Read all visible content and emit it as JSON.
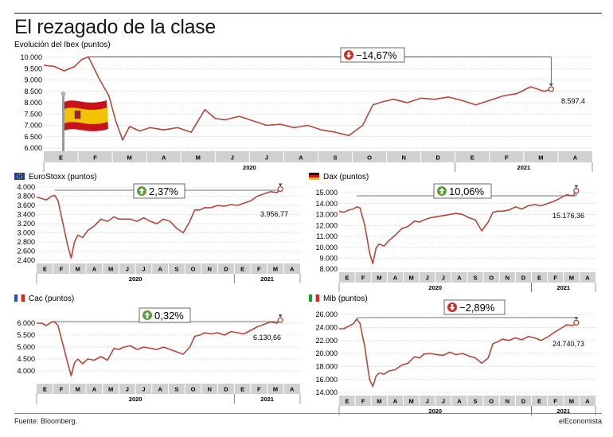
{
  "title": "El rezagado de la clase",
  "source": "Fuente: Bloomberg.",
  "brand": "elEconomista",
  "colors": {
    "line": "#b8463a",
    "badge_up": "#5b9c3a",
    "badge_down": "#d42a1e",
    "axis_band": "#d0d0d0"
  },
  "chart_data": [
    {
      "id": "ibex",
      "type": "line",
      "title": "Evolución del Ibex (puntos)",
      "flag": "spain-flag-icon",
      "ylim": [
        6000,
        10000
      ],
      "yticks": [
        "10.000",
        "9.500",
        "9.000",
        "8.500",
        "8.000",
        "7.500",
        "7.000",
        "6.500",
        "6.000"
      ],
      "ytick_values": [
        10000,
        9500,
        9000,
        8500,
        8000,
        7500,
        7000,
        6500,
        6000
      ],
      "months": [
        "E",
        "F",
        "M",
        "A",
        "M",
        "J",
        "J",
        "A",
        "S",
        "O",
        "N",
        "D",
        "E",
        "F",
        "M",
        "A"
      ],
      "years": [
        {
          "label": "2020",
          "from": 0,
          "to": 12
        },
        {
          "label": "2021",
          "from": 12,
          "to": 16
        }
      ],
      "change": "−14,67%",
      "direction": "down",
      "last_label": "8.597,4",
      "x": [
        0,
        0.3,
        0.6,
        0.9,
        1.1,
        1.3,
        1.6,
        1.9,
        2.1,
        2.3,
        2.5,
        2.8,
        3.1,
        3.5,
        3.9,
        4.3,
        4.7,
        5.0,
        5.3,
        5.7,
        6.1,
        6.5,
        6.9,
        7.3,
        7.7,
        8.1,
        8.5,
        8.9,
        9.3,
        9.6,
        9.9,
        10.2,
        10.6,
        11.0,
        11.4,
        11.8,
        12.2,
        12.6,
        13.0,
        13.4,
        13.8,
        14.2,
        14.6,
        14.8
      ],
      "values": [
        9650,
        9600,
        9400,
        9600,
        9900,
        10020,
        9100,
        8300,
        7200,
        6350,
        6950,
        6750,
        6900,
        6800,
        6900,
        6700,
        7700,
        7300,
        7250,
        7400,
        7200,
        7000,
        7050,
        6900,
        7000,
        6800,
        6700,
        6550,
        7000,
        7900,
        8050,
        8150,
        8000,
        8200,
        8150,
        8250,
        8100,
        7900,
        8100,
        8300,
        8400,
        8700,
        8500,
        8600
      ]
    },
    {
      "id": "eurostoxx",
      "type": "line",
      "title": "EuroStoxx (puntos)",
      "flag": "eu-flag-icon",
      "ylim": [
        2400,
        4000
      ],
      "yticks": [
        "4.000",
        "3.800",
        "3.600",
        "3.400",
        "3.200",
        "3.000",
        "2.800",
        "2.600",
        "2.400"
      ],
      "ytick_values": [
        4000,
        3800,
        3600,
        3400,
        3200,
        3000,
        2800,
        2600,
        2400
      ],
      "months": [
        "E",
        "F",
        "M",
        "A",
        "M",
        "J",
        "J",
        "A",
        "S",
        "O",
        "N",
        "D",
        "E",
        "F",
        "M",
        "A"
      ],
      "years": [
        {
          "label": "2020",
          "from": 0,
          "to": 12
        },
        {
          "label": "2021",
          "from": 12,
          "to": 16
        }
      ],
      "change": "2,37%",
      "direction": "up",
      "last_label": "3.956,77",
      "x": [
        0,
        0.3,
        0.6,
        0.9,
        1.1,
        1.3,
        1.6,
        1.9,
        2.1,
        2.3,
        2.5,
        2.8,
        3.1,
        3.5,
        3.9,
        4.3,
        4.7,
        5.0,
        5.3,
        5.7,
        6.1,
        6.5,
        6.9,
        7.3,
        7.7,
        8.1,
        8.5,
        8.9,
        9.3,
        9.6,
        9.9,
        10.2,
        10.6,
        11.0,
        11.4,
        11.8,
        12.2,
        12.6,
        13.0,
        13.4,
        13.8,
        14.2,
        14.6,
        14.8
      ],
      "values": [
        3780,
        3750,
        3720,
        3800,
        3820,
        3700,
        3200,
        2700,
        2450,
        2800,
        2950,
        2900,
        3050,
        3150,
        3300,
        3250,
        3350,
        3300,
        3300,
        3300,
        3250,
        3330,
        3250,
        3200,
        3300,
        3250,
        3100,
        3000,
        3250,
        3500,
        3500,
        3550,
        3550,
        3600,
        3580,
        3620,
        3600,
        3650,
        3700,
        3800,
        3850,
        3900,
        3880,
        3956
      ]
    },
    {
      "id": "dax",
      "type": "line",
      "title": "Dax (puntos)",
      "flag": "germany-flag-icon",
      "ylim": [
        8000,
        15000
      ],
      "yticks": [
        "15.000",
        "14.000",
        "13.000",
        "12.000",
        "11.000",
        "10.000",
        "9.000",
        "8.000"
      ],
      "ytick_values": [
        15000,
        14000,
        13000,
        12000,
        11000,
        10000,
        9000,
        8000
      ],
      "months": [
        "E",
        "F",
        "M",
        "A",
        "M",
        "J",
        "J",
        "A",
        "S",
        "O",
        "N",
        "D",
        "E",
        "F",
        "M",
        "A"
      ],
      "years": [
        {
          "label": "2020",
          "from": 0,
          "to": 12
        },
        {
          "label": "2021",
          "from": 12,
          "to": 16
        }
      ],
      "change": "10,06%",
      "direction": "up",
      "last_label": "15.176,36",
      "x": [
        0,
        0.3,
        0.6,
        0.9,
        1.1,
        1.3,
        1.6,
        1.9,
        2.1,
        2.3,
        2.5,
        2.8,
        3.1,
        3.5,
        3.9,
        4.3,
        4.7,
        5.0,
        5.3,
        5.7,
        6.1,
        6.5,
        6.9,
        7.3,
        7.7,
        8.1,
        8.5,
        8.9,
        9.3,
        9.6,
        9.9,
        10.2,
        10.6,
        11.0,
        11.4,
        11.8,
        12.2,
        12.6,
        13.0,
        13.4,
        13.8,
        14.2,
        14.6,
        14.8
      ],
      "values": [
        13300,
        13200,
        13400,
        13500,
        13700,
        13600,
        12000,
        9500,
        8500,
        9900,
        10300,
        10100,
        10600,
        11100,
        11700,
        11900,
        12400,
        12300,
        12500,
        12700,
        12800,
        12900,
        13000,
        13100,
        13000,
        12700,
        12500,
        11500,
        12300,
        13200,
        13300,
        13300,
        13400,
        13700,
        13500,
        13800,
        13900,
        13800,
        14000,
        14200,
        14500,
        14800,
        14700,
        15176
      ]
    },
    {
      "id": "cac",
      "type": "line",
      "title": "Cac (puntos)",
      "flag": "france-flag-icon",
      "ylim": [
        3600,
        6200
      ],
      "yticks": [
        "6.000",
        "5.500",
        "5.000",
        "4.500",
        "4.000"
      ],
      "ytick_values": [
        6000,
        5500,
        5000,
        4500,
        4000
      ],
      "months": [
        "E",
        "F",
        "M",
        "A",
        "M",
        "J",
        "J",
        "A",
        "S",
        "O",
        "N",
        "D",
        "E",
        "F",
        "M",
        "A"
      ],
      "years": [
        {
          "label": "2020",
          "from": 0,
          "to": 12
        },
        {
          "label": "2021",
          "from": 12,
          "to": 16
        }
      ],
      "change": "0,32%",
      "direction": "up",
      "last_label": "6.130,66",
      "x": [
        0,
        0.3,
        0.6,
        0.9,
        1.1,
        1.3,
        1.6,
        1.9,
        2.1,
        2.3,
        2.5,
        2.8,
        3.1,
        3.5,
        3.9,
        4.3,
        4.7,
        5.0,
        5.3,
        5.7,
        6.1,
        6.5,
        6.9,
        7.3,
        7.7,
        8.1,
        8.5,
        8.9,
        9.3,
        9.6,
        9.9,
        10.2,
        10.6,
        11.0,
        11.4,
        11.8,
        12.2,
        12.6,
        13.0,
        13.4,
        13.8,
        14.2,
        14.6,
        14.8
      ],
      "values": [
        6000,
        6000,
        5900,
        6050,
        6050,
        5900,
        5100,
        4300,
        3800,
        4350,
        4500,
        4300,
        4500,
        4450,
        4600,
        4450,
        4950,
        4900,
        5000,
        5050,
        4900,
        5000,
        4950,
        4900,
        5000,
        4900,
        4800,
        4700,
        5000,
        5450,
        5500,
        5600,
        5550,
        5600,
        5500,
        5650,
        5600,
        5550,
        5700,
        5850,
        5950,
        6050,
        6000,
        6130
      ]
    },
    {
      "id": "mib",
      "type": "line",
      "title": "Mib (puntos)",
      "flag": "italy-flag-icon",
      "ylim": [
        14000,
        26000
      ],
      "yticks": [
        "26.000",
        "24.000",
        "22.000",
        "20.000",
        "18.000",
        "16.000",
        "14.000"
      ],
      "ytick_values": [
        26000,
        24000,
        22000,
        20000,
        18000,
        16000,
        14000
      ],
      "months": [
        "E",
        "F",
        "M",
        "A",
        "M",
        "J",
        "J",
        "A",
        "S",
        "O",
        "N",
        "D",
        "E",
        "F",
        "M",
        "A"
      ],
      "years": [
        {
          "label": "2020",
          "from": 0,
          "to": 12
        },
        {
          "label": "2021",
          "from": 12,
          "to": 16
        }
      ],
      "change": "−2,89%",
      "direction": "down",
      "last_label": "24.740,73",
      "x": [
        0,
        0.3,
        0.6,
        0.9,
        1.1,
        1.3,
        1.6,
        1.9,
        2.1,
        2.3,
        2.5,
        2.8,
        3.1,
        3.5,
        3.9,
        4.3,
        4.7,
        5.0,
        5.3,
        5.7,
        6.1,
        6.5,
        6.9,
        7.3,
        7.7,
        8.1,
        8.5,
        8.9,
        9.3,
        9.6,
        9.9,
        10.2,
        10.6,
        11.0,
        11.4,
        11.8,
        12.2,
        12.6,
        13.0,
        13.4,
        13.8,
        14.2,
        14.6,
        14.8
      ],
      "values": [
        23800,
        23800,
        24200,
        24600,
        25300,
        24600,
        21000,
        16000,
        14900,
        16500,
        17000,
        16800,
        17300,
        17500,
        18200,
        18500,
        19500,
        19300,
        19900,
        20000,
        19800,
        19700,
        20200,
        19800,
        20000,
        19600,
        19300,
        18500,
        19300,
        21500,
        21800,
        22200,
        22000,
        22400,
        22100,
        22600,
        22400,
        22000,
        22500,
        23200,
        23800,
        24400,
        24300,
        24740
      ]
    }
  ]
}
